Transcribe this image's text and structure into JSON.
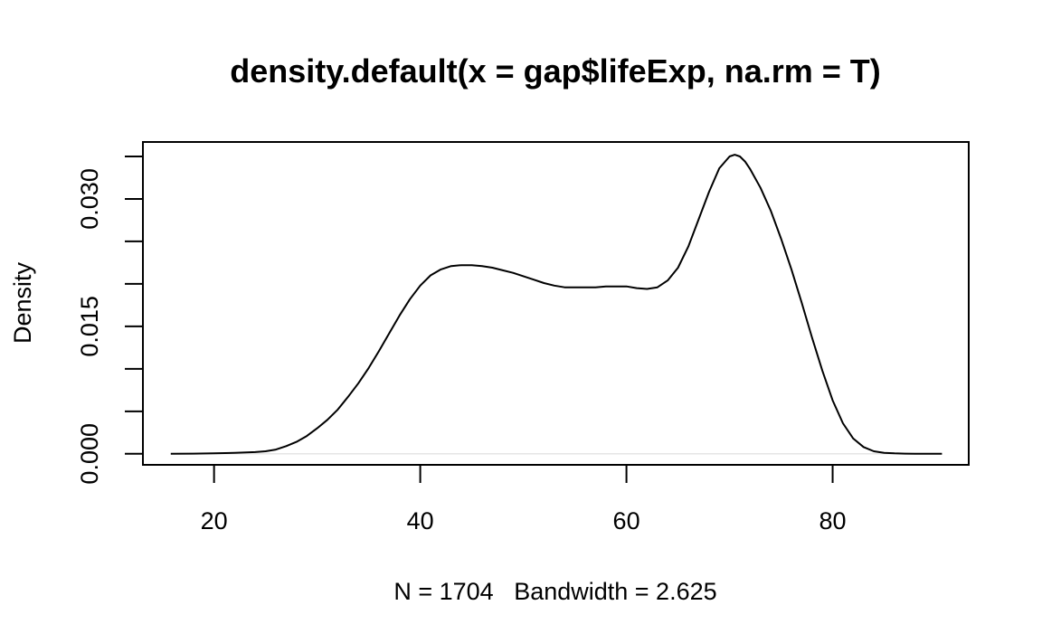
{
  "chart_data": {
    "type": "line",
    "title": "density.default(x = gap$lifeExp, na.rm = T)",
    "xlabel": "N = 1704   Bandwidth = 2.625",
    "ylabel": "Density",
    "xlim": [
      13.1,
      93.2
    ],
    "ylim": [
      -0.0013,
      0.0367
    ],
    "xticks": [
      20,
      40,
      60,
      80
    ],
    "xtick_labels": [
      "20",
      "40",
      "60",
      "80"
    ],
    "yticks": [
      0.0,
      0.005,
      0.01,
      0.015,
      0.02,
      0.025,
      0.03,
      0.035
    ],
    "ytick_labels": [
      "0.000",
      "",
      "",
      "0.015",
      "",
      "",
      "0.030",
      ""
    ],
    "grid": false,
    "zero_line": true,
    "series": [
      {
        "x": [
          15.8,
          18,
          20,
          22,
          24,
          25,
          26,
          27,
          28,
          29,
          30,
          31,
          32,
          33,
          34,
          35,
          36,
          37,
          38,
          39,
          40,
          41,
          42,
          43,
          44,
          45,
          46,
          47,
          48,
          49,
          50,
          51,
          52,
          53,
          54,
          55,
          56,
          57,
          58,
          59,
          60,
          61,
          62,
          63,
          64,
          65,
          66,
          67,
          68,
          69,
          70,
          70.5,
          71,
          71.5,
          72,
          73,
          74,
          75,
          76,
          77,
          78,
          79,
          80,
          81,
          82,
          83,
          84,
          85,
          86,
          87,
          88,
          89,
          90.6
        ],
        "y": [
          0.0,
          2e-05,
          5e-05,
          0.0001,
          0.0002,
          0.0003,
          0.0005,
          0.0009,
          0.0014,
          0.0021,
          0.003,
          0.004,
          0.0052,
          0.0067,
          0.0083,
          0.0101,
          0.0121,
          0.0142,
          0.0163,
          0.0182,
          0.0198,
          0.021,
          0.0217,
          0.0221,
          0.0222,
          0.0222,
          0.0221,
          0.0219,
          0.0216,
          0.0213,
          0.0209,
          0.0205,
          0.0201,
          0.0198,
          0.0196,
          0.0196,
          0.0196,
          0.0196,
          0.0197,
          0.0197,
          0.0197,
          0.0195,
          0.0194,
          0.0196,
          0.0204,
          0.0219,
          0.0244,
          0.0276,
          0.0308,
          0.0336,
          0.035,
          0.0352,
          0.035,
          0.0344,
          0.0335,
          0.0313,
          0.0286,
          0.0253,
          0.0217,
          0.0178,
          0.0137,
          0.0098,
          0.0063,
          0.0036,
          0.0018,
          0.0008,
          0.0003,
          0.00012,
          5e-05,
          2e-05,
          1e-05,
          0.0,
          0.0
        ]
      }
    ]
  }
}
